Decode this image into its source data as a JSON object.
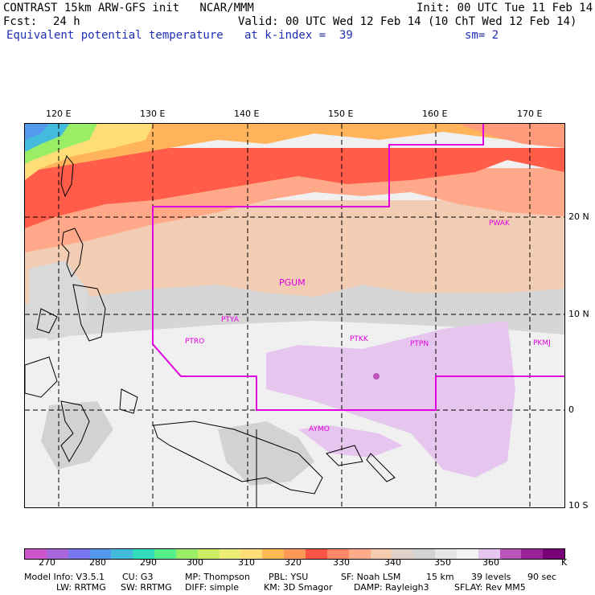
{
  "header": {
    "title": "CONTRAST 15km ARW-GFS init   NCAR/MMM",
    "init": "Init: 00 UTC Tue 11 Feb 14",
    "fcst_label": "Fcst:",
    "fcst_value": "24 h",
    "valid": "Valid: 00 UTC Wed 12 Feb 14 (10 ChT Wed 12 Feb 14)",
    "field": "Equivalent potential temperature",
    "level": "at k-index =  39",
    "smooth": "sm= 2"
  },
  "map": {
    "lon_labels": [
      "120 E",
      "130 E",
      "140 E",
      "150 E",
      "160 E",
      "170 E"
    ],
    "lat_labels": [
      "20 N",
      "10 N",
      "0",
      "10 S"
    ],
    "stations": [
      {
        "name": "PWAK"
      },
      {
        "name": "PGUM"
      },
      {
        "name": "PTYA"
      },
      {
        "name": "PTRO"
      },
      {
        "name": "PTKK"
      },
      {
        "name": "PTPN"
      },
      {
        "name": "PKMJ"
      },
      {
        "name": "AYMO"
      }
    ]
  },
  "colorbar": {
    "colors": [
      "#cc55cc",
      "#aa66dd",
      "#7777ee",
      "#5599ee",
      "#44bbdd",
      "#33ddbb",
      "#55ee88",
      "#99ee66",
      "#ccee66",
      "#eeee77",
      "#ffdd77",
      "#ffbb55",
      "#ff9955",
      "#ff5544",
      "#ff8866",
      "#ffaa88",
      "#f7cbae",
      "#e0d2c8",
      "#d3d3d3",
      "#e6e6e6",
      "#f3f3f3",
      "#e6c6ee",
      "#bb55bb",
      "#992299",
      "#770077"
    ],
    "labels": [
      "270",
      "280",
      "290",
      "300",
      "310",
      "320",
      "330",
      "340",
      "350",
      "360",
      "K"
    ]
  },
  "footer": {
    "line1": [
      "Model Info: V3.5.1",
      "CU: G3",
      "MP: Thompson",
      "PBL: YSU",
      "SF: Noah LSM",
      "15 km",
      "39 levels",
      "90 sec"
    ],
    "line2": [
      "LW: RRTMG",
      "SW: RRTMG",
      "DIFF: simple",
      "KM: 3D Smagor",
      "DAMP: Rayleigh3",
      "SFLAY: Rev MM5"
    ]
  }
}
